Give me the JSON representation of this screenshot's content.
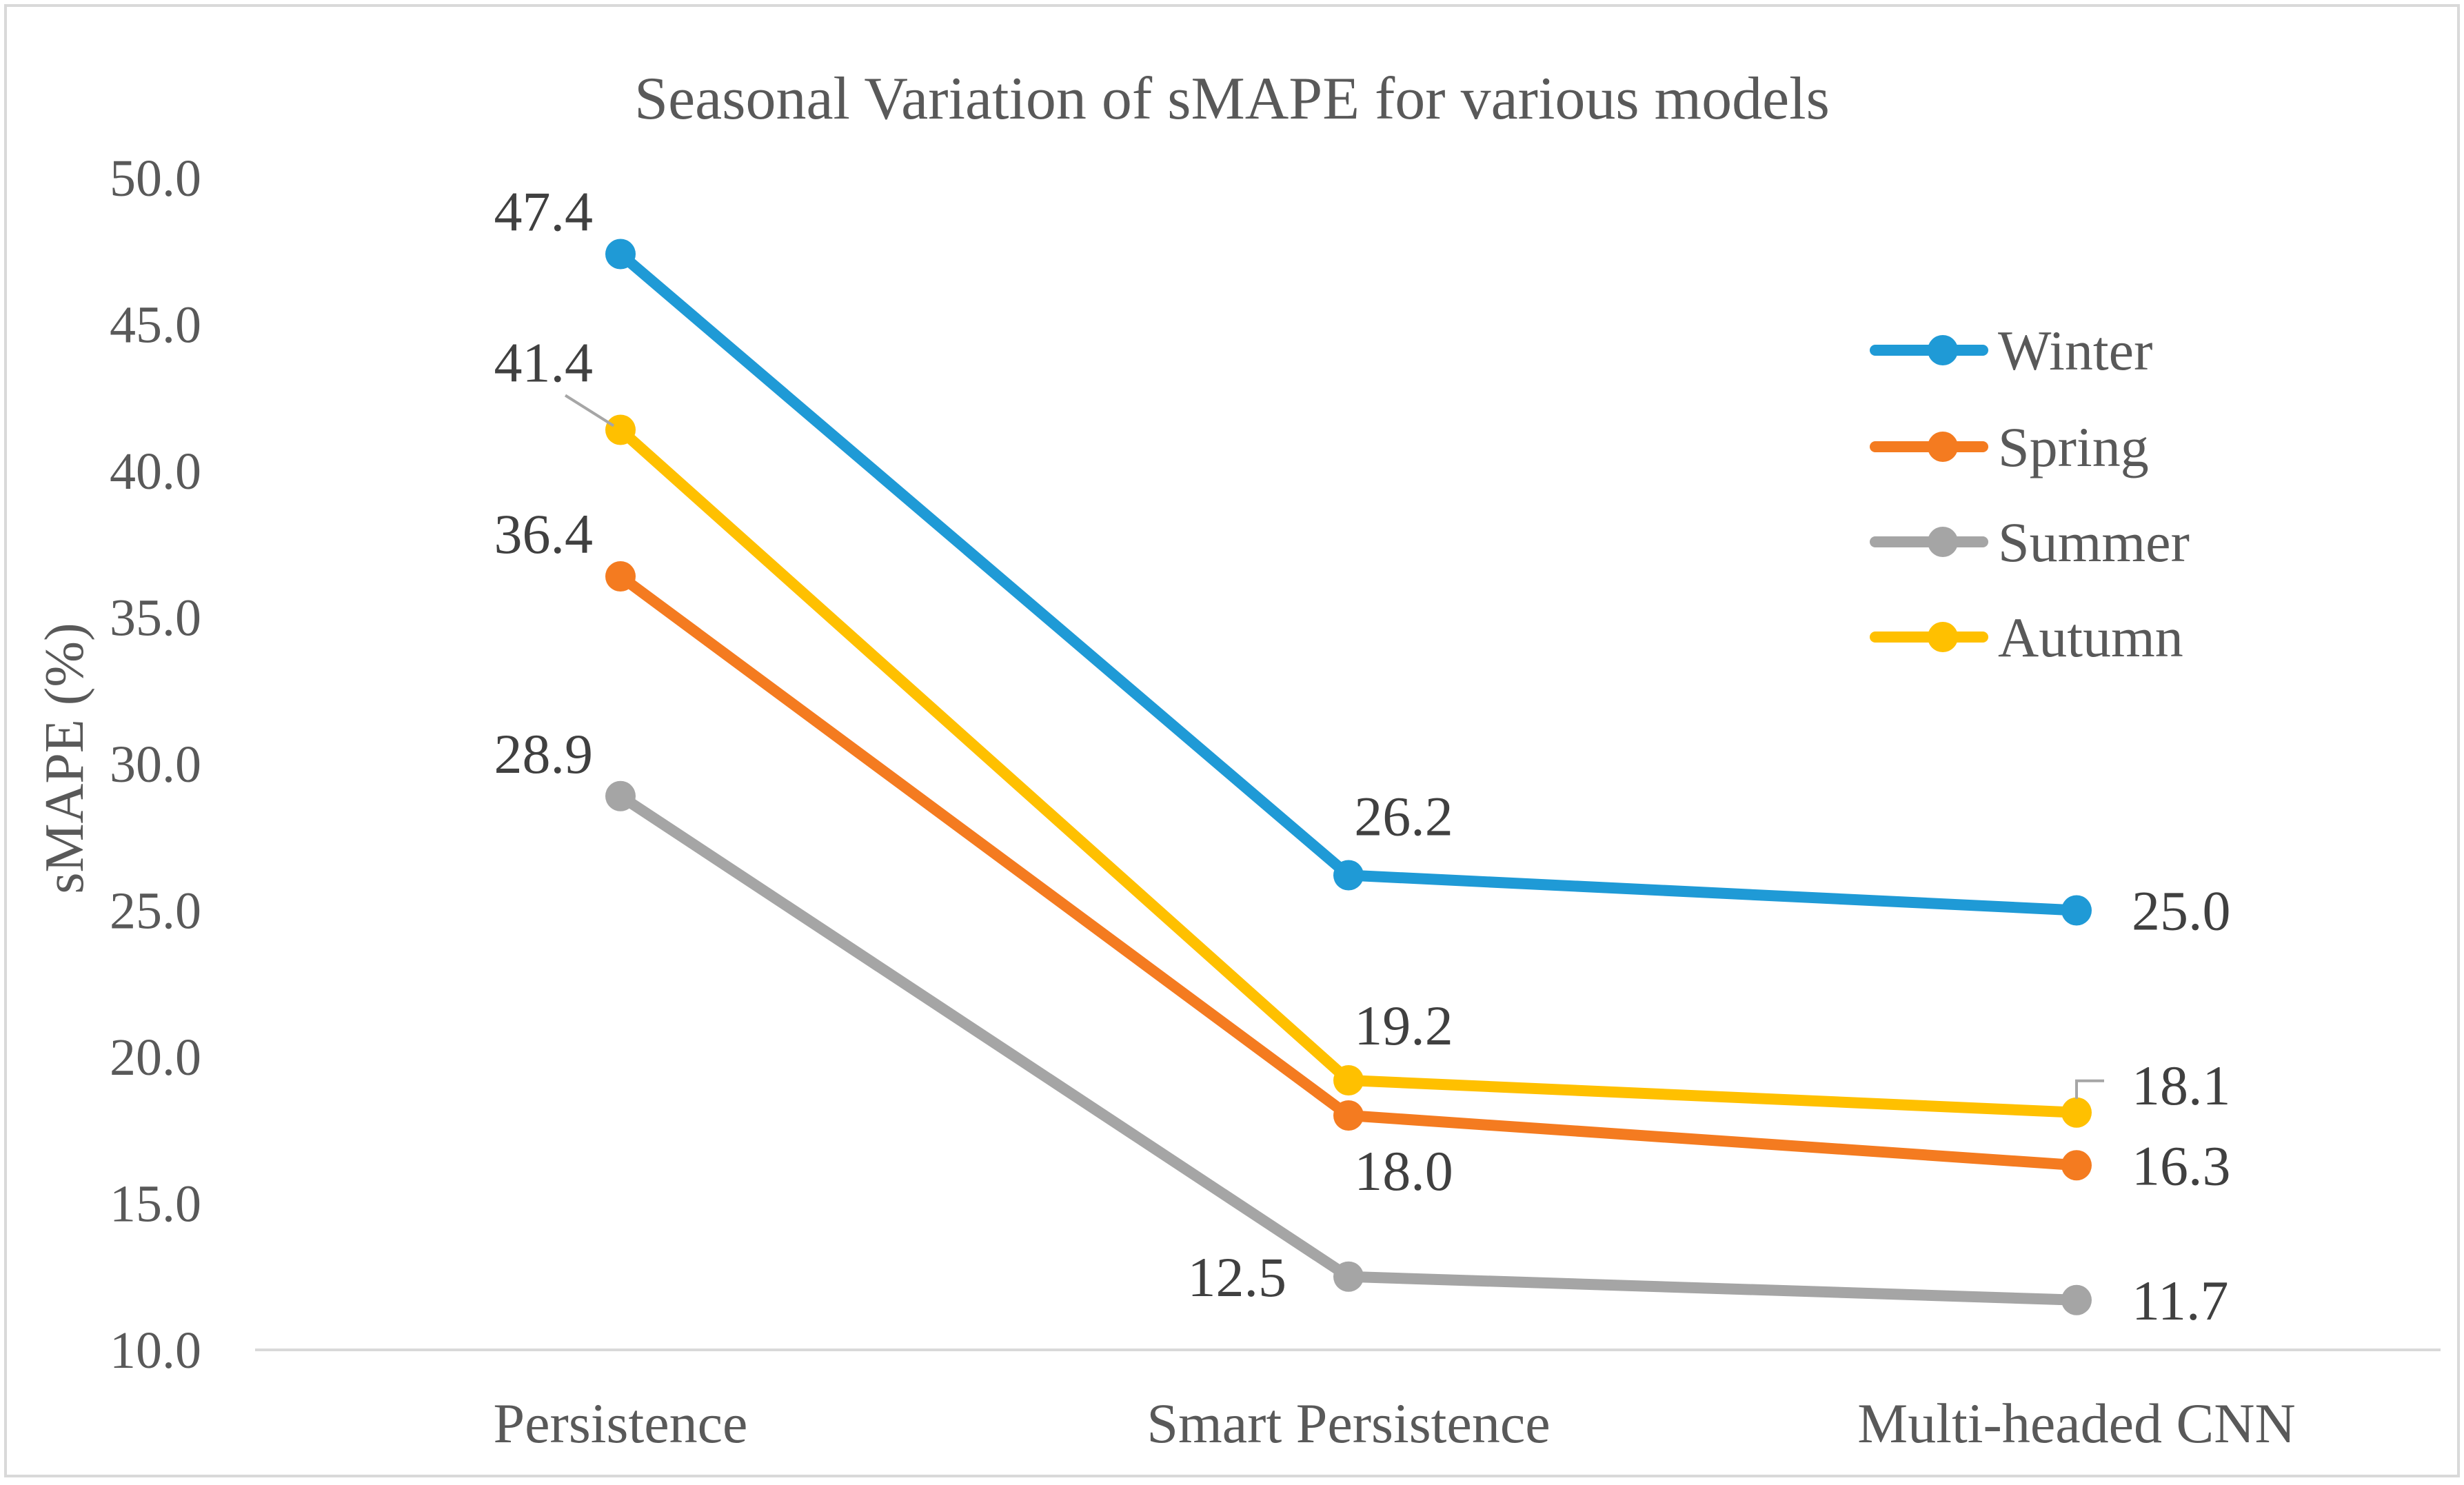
{
  "chart_data": {
    "type": "line",
    "title": "Seasonal Variation of sMAPE for various models",
    "xlabel": "",
    "ylabel": "sMAPE (%)",
    "ylim": [
      10.0,
      50.0
    ],
    "yticks": [
      "10.0",
      "15.0",
      "20.0",
      "25.0",
      "30.0",
      "35.0",
      "40.0",
      "45.0",
      "50.0"
    ],
    "categories": [
      "Persistence",
      "Smart Persistence",
      "Multi-headed CNN"
    ],
    "grid": false,
    "legend_position": "top-right",
    "series": [
      {
        "name": "Winter",
        "color": "#1F9AD6",
        "values": [
          47.4,
          26.2,
          25.0
        ],
        "labels": [
          "47.4",
          "26.2",
          "25.0"
        ]
      },
      {
        "name": "Spring",
        "color": "#F47B20",
        "values": [
          36.4,
          18.0,
          16.3
        ],
        "labels": [
          "36.4",
          "18.0",
          "16.3"
        ]
      },
      {
        "name": "Summer",
        "color": "#A5A5A5",
        "values": [
          28.9,
          12.5,
          11.7
        ],
        "labels": [
          "28.9",
          "12.5",
          "11.7"
        ]
      },
      {
        "name": "Autumn",
        "color": "#FFC000",
        "values": [
          41.4,
          19.2,
          18.1
        ],
        "labels": [
          "41.4",
          "19.2",
          "18.1"
        ]
      }
    ]
  }
}
